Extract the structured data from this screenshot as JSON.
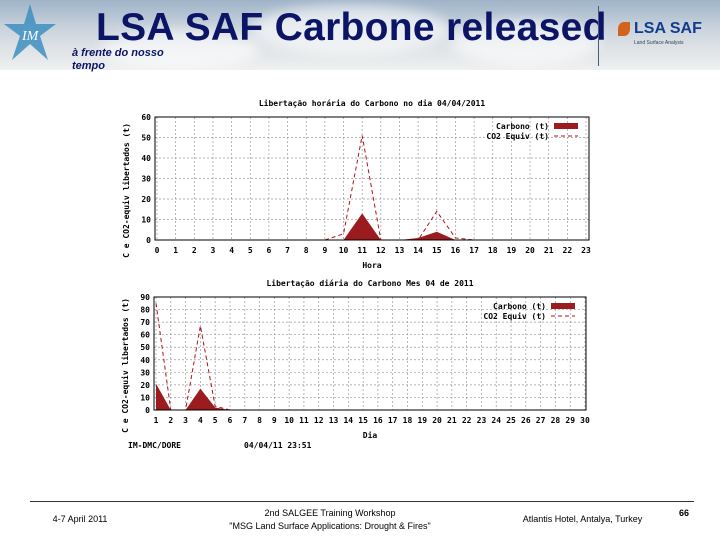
{
  "header": {
    "title": "LSA SAF Carbone released",
    "tagline": "à frente do nosso tempo",
    "logo_left": "IM",
    "logo_right": "LSA SAF",
    "logo_right_sub": "Land Surface Analysis"
  },
  "chart_data": [
    {
      "type": "area",
      "title": "Libertação horária do Carbono no dia 04/04/2011",
      "xlabel": "Hora",
      "ylabel": "C e CO2-equiv libertados (t)",
      "x": [
        0,
        1,
        2,
        3,
        4,
        5,
        6,
        7,
        8,
        9,
        10,
        11,
        12,
        13,
        14,
        15,
        16,
        17,
        18,
        19,
        20,
        21,
        22,
        23
      ],
      "xticks": [
        "0",
        "1",
        "2",
        "3",
        "4",
        "5",
        "6",
        "7",
        "8",
        "9",
        "10",
        "11",
        "12",
        "13",
        "14",
        "15",
        "16",
        "17",
        "18",
        "19",
        "20",
        "21",
        "22",
        "23"
      ],
      "ylim": [
        0,
        60
      ],
      "yticks": [
        "0",
        "10",
        "20",
        "30",
        "40",
        "50",
        "60"
      ],
      "grid": true,
      "legend": "top-right",
      "series": [
        {
          "name": "Carbono (t)",
          "style": "filled",
          "color": "#9b1b1e",
          "values": [
            0,
            0,
            0,
            0,
            0,
            0,
            0,
            0,
            0,
            0,
            0,
            13,
            0,
            0,
            1,
            4,
            0,
            0,
            0,
            0,
            0,
            0,
            0,
            0
          ]
        },
        {
          "name": "CO2 Equiv (t)",
          "style": "dashed",
          "color": "#b0101a",
          "values": [
            0,
            0,
            0,
            0,
            0,
            0,
            0,
            0,
            0,
            0,
            3,
            51,
            0,
            0,
            0,
            14,
            1,
            0,
            0,
            0,
            0,
            0,
            0,
            0
          ]
        }
      ]
    },
    {
      "type": "area",
      "title": "Libertação diária do Carbono Mes 04 de 2011",
      "xlabel": "Dia",
      "ylabel": "C e CO2-equiv libertados (t)",
      "x": [
        1,
        2,
        3,
        4,
        5,
        6,
        7,
        8,
        9,
        10,
        11,
        12,
        13,
        14,
        15,
        16,
        17,
        18,
        19,
        20,
        21,
        22,
        23,
        24,
        25,
        26,
        27,
        28,
        29,
        30
      ],
      "xticks": [
        "1",
        "2",
        "3",
        "4",
        "5",
        "6",
        "7",
        "8",
        "9",
        "10",
        "11",
        "12",
        "13",
        "14",
        "15",
        "16",
        "17",
        "18",
        "19",
        "20",
        "21",
        "22",
        "23",
        "24",
        "25",
        "26",
        "27",
        "28",
        "29",
        "30"
      ],
      "ylim": [
        0,
        90
      ],
      "yticks": [
        "0",
        "10",
        "20",
        "30",
        "40",
        "50",
        "60",
        "70",
        "80",
        "90"
      ],
      "grid": true,
      "legend": "top-right",
      "series": [
        {
          "name": "Carbono (t)",
          "style": "filled",
          "color": "#9b1b1e",
          "values": [
            21,
            0,
            0,
            17,
            2,
            0,
            0,
            0,
            0,
            0,
            0,
            0,
            0,
            0,
            0,
            0,
            0,
            0,
            0,
            0,
            0,
            0,
            0,
            0,
            0,
            0,
            0,
            0,
            0,
            0
          ]
        },
        {
          "name": "CO2 Equiv (t)",
          "style": "dashed",
          "color": "#b0101a",
          "values": [
            85,
            0,
            0,
            67,
            3,
            0,
            0,
            0,
            0,
            0,
            0,
            0,
            0,
            0,
            0,
            0,
            0,
            0,
            0,
            0,
            0,
            0,
            0,
            0,
            0,
            0,
            0,
            0,
            0,
            0
          ]
        }
      ],
      "footer_left": "IM-DMC/DORE",
      "footer_time": "04/04/11 23:51"
    }
  ],
  "footer": {
    "date": "4-7 April 2011",
    "event_line1": "2nd SALGEE Training Workshop",
    "event_line2": "\"MSG Land Surface Applications: Drought & Fires\"",
    "venue": "Atlantis Hotel, Antalya, Turkey",
    "page": "66"
  }
}
